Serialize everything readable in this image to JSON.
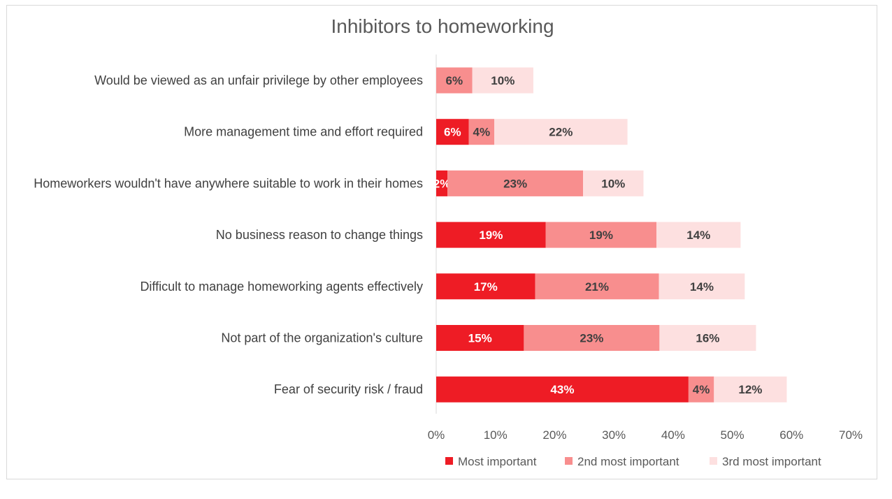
{
  "chart_data": {
    "type": "bar",
    "orientation": "horizontal",
    "stacked": true,
    "title": "Inhibitors to homeworking",
    "categories": [
      "Would be viewed as an unfair privilege by other employees",
      "More management time and effort required",
      "Homeworkers wouldn't have anywhere suitable to work in their homes",
      "No business reason to change things",
      "Difficult to manage homeworking agents effectively",
      "Not part of the organization's culture",
      "Fear of security risk / fraud"
    ],
    "series": [
      {
        "name": "Most important",
        "color": "#ee1c25",
        "label_color": "#ffffff",
        "values": [
          0,
          5.5,
          1.9,
          18.5,
          16.7,
          14.8,
          42.6
        ],
        "labels": [
          "",
          "6%",
          "2%",
          "19%",
          "17%",
          "15%",
          "43%"
        ]
      },
      {
        "name": "2nd most important",
        "color": "#f88e8e",
        "label_color": "#404040",
        "values": [
          6.1,
          4.3,
          22.9,
          18.7,
          20.9,
          22.9,
          4.3
        ],
        "labels": [
          "6%",
          "4%",
          "23%",
          "19%",
          "21%",
          "23%",
          "4%"
        ]
      },
      {
        "name": "3rd most important",
        "color": "#fde0e0",
        "label_color": "#404040",
        "values": [
          10.3,
          22.5,
          10.2,
          14.2,
          14.5,
          16.3,
          12.3
        ],
        "labels": [
          "10%",
          "22%",
          "10%",
          "14%",
          "14%",
          "16%",
          "12%"
        ]
      }
    ],
    "xlim": [
      0,
      70
    ],
    "xticks": [
      "0%",
      "10%",
      "20%",
      "30%",
      "40%",
      "50%",
      "60%",
      "70%"
    ],
    "grid": false,
    "legend_position": "bottom"
  }
}
